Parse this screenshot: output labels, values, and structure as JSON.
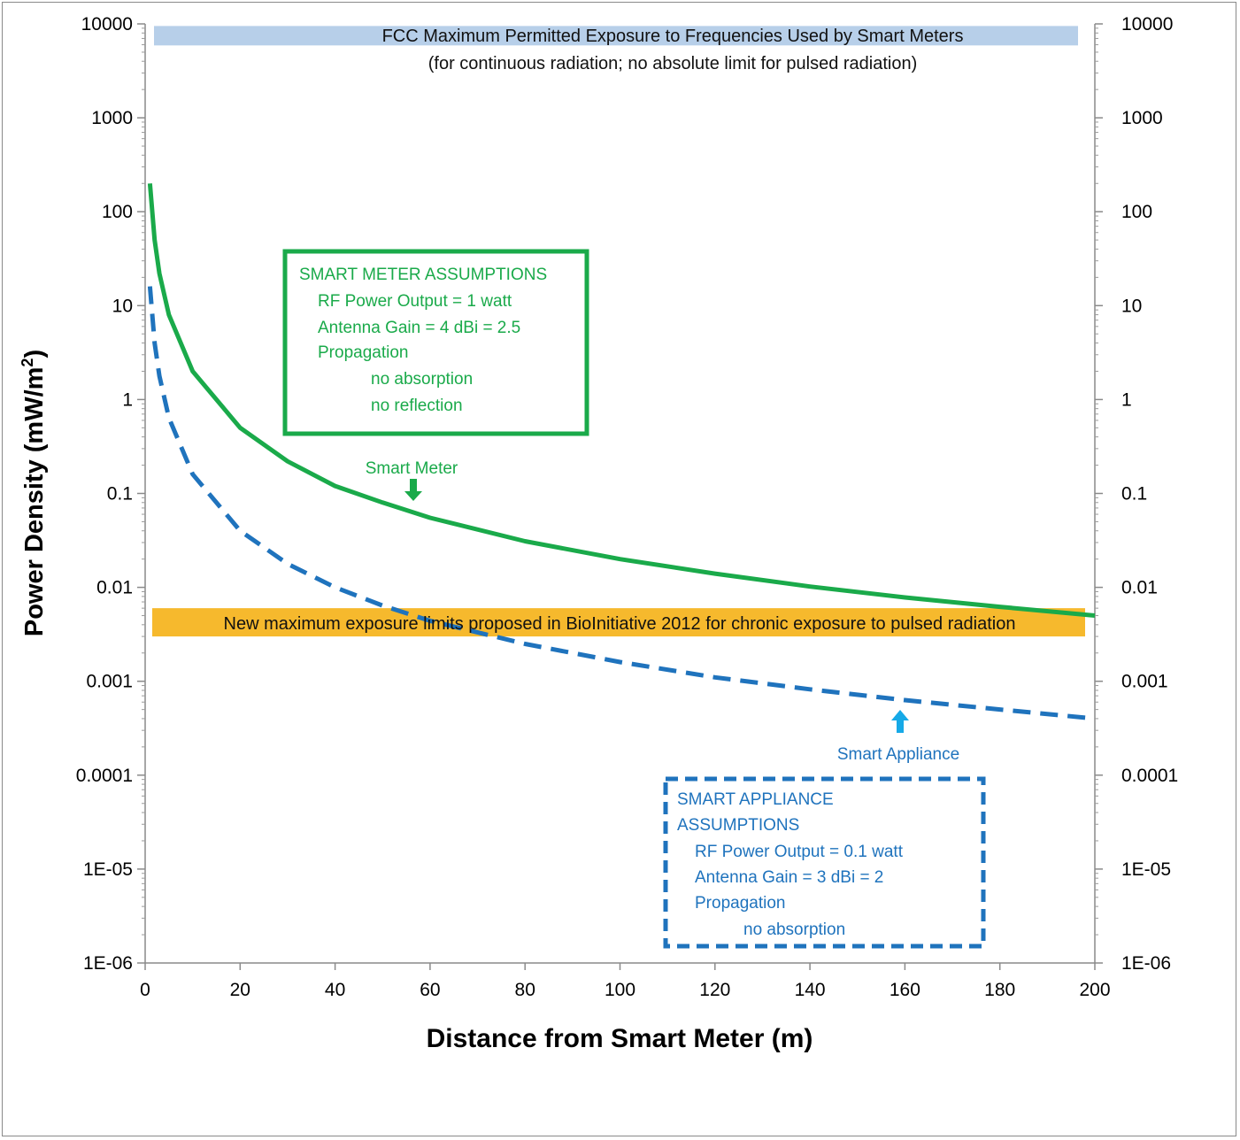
{
  "chart_data": {
    "type": "line",
    "title": "",
    "xlabel": "Distance from Smart Meter (m)",
    "ylabel_main": "Power Density (mW/m",
    "ylabel_sup": "2",
    "ylabel_close": ")",
    "xlim": [
      0,
      200
    ],
    "ylim": [
      1e-06,
      10000
    ],
    "yscale": "log",
    "x_ticks": [
      "0",
      "20",
      "40",
      "60",
      "80",
      "100",
      "120",
      "140",
      "160",
      "180",
      "200"
    ],
    "x_tick_values": [
      0,
      20,
      40,
      60,
      80,
      100,
      120,
      140,
      160,
      180,
      200
    ],
    "y_ticks": [
      "1E-06",
      "1E-05",
      "0.0001",
      "0.001",
      "0.01",
      "0.1",
      "1",
      "10",
      "100",
      "1000",
      "10000"
    ],
    "y_tick_values": [
      1e-06,
      1e-05,
      0.0001,
      0.001,
      0.01,
      0.1,
      1,
      10,
      100,
      1000,
      10000
    ],
    "grid": false,
    "legend": "none",
    "series": [
      {
        "label": "Smart Meter",
        "color": "#1aaa4a",
        "style": "solid",
        "x": [
          1,
          2,
          3,
          5,
          10,
          20,
          30,
          40,
          50,
          60,
          80,
          100,
          120,
          140,
          160,
          180,
          200
        ],
        "y": [
          200,
          50,
          22,
          8,
          2,
          0.5,
          0.22,
          0.12,
          0.08,
          0.055,
          0.031,
          0.02,
          0.014,
          0.0102,
          0.0078,
          0.0062,
          0.005
        ]
      },
      {
        "label": "Smart Appliance",
        "color": "#1f73bd",
        "style": "dashed",
        "x": [
          1,
          2,
          3,
          5,
          10,
          20,
          30,
          40,
          50,
          60,
          80,
          100,
          120,
          140,
          160,
          180,
          200
        ],
        "y": [
          16,
          4,
          1.78,
          0.64,
          0.16,
          0.04,
          0.0178,
          0.01,
          0.0064,
          0.0044,
          0.0025,
          0.0016,
          0.0011,
          0.00082,
          0.00063,
          0.0005,
          0.0004
        ]
      }
    ],
    "bands": [
      {
        "label_line1": "FCC Maximum Permitted Exposure to Frequencies Used by Smart Meters",
        "label_line2": "(for continuous  radiation; no absolute limit for pulsed radiation)",
        "color": "#b7cfe9",
        "y_low": 5900,
        "y_high": 9500
      },
      {
        "label_line1": "New maximum exposure limits proposed in BioInitiative 2012 for chronic exposure to pulsed radiation",
        "color": "#f6b92d",
        "y_low": 0.003,
        "y_high": 0.006
      }
    ],
    "annotations": {
      "smart_meter_label": "Smart Meter",
      "smart_appliance_label": "Smart Appliance",
      "meter_box": {
        "title": "SMART METER ASSUMPTIONS",
        "lines": [
          "RF Power  Output = 1 watt",
          "Antenna Gain =  4 dBi = 2.5",
          "Propagation",
          "no absorption",
          "no reflection"
        ]
      },
      "appliance_box": {
        "title_line1": "SMART APPLIANCE",
        "title_line2": "ASSUMPTIONS",
        "lines": [
          "RF Power Output = 0.1 watt",
          "Antenna Gain = 3 dBi = 2",
          "Propagation",
          "no absorption"
        ]
      }
    }
  }
}
